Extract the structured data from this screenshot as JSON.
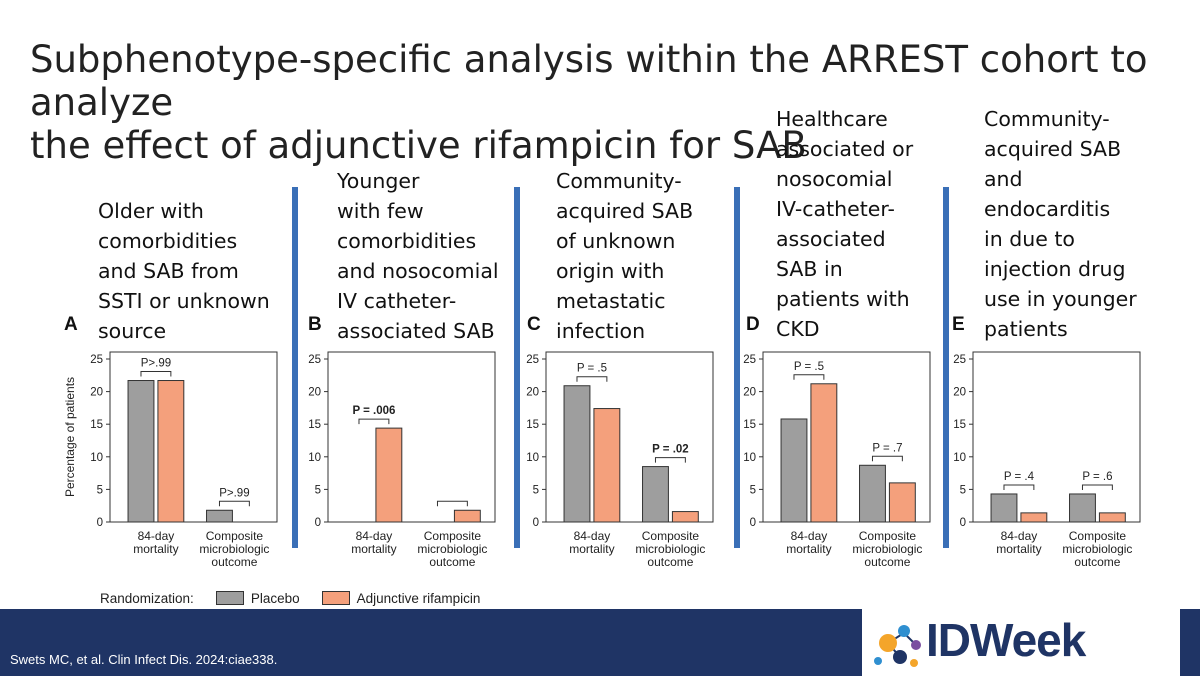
{
  "title_lines": [
    "Subphenotype-specific analysis within the ARREST cohort to analyze",
    "the effect of adjunctive rifampicin for SAB"
  ],
  "panels": [
    {
      "letter": "A",
      "desc": [
        "Older with",
        "comorbidities",
        "and SAB from",
        "SSTI or unknown",
        "source"
      ]
    },
    {
      "letter": "B",
      "desc": [
        "Younger",
        "with few",
        "comorbidities",
        "and nosocomial",
        "IV catheter-",
        "associated SAB"
      ]
    },
    {
      "letter": "C",
      "desc": [
        "Community-",
        "acquired SAB",
        "of unknown",
        "origin with",
        "metastatic",
        "infection"
      ]
    },
    {
      "letter": "D",
      "desc": [
        "Healthcare",
        "associated or",
        "nosocomial",
        "IV-catheter-",
        "associated",
        "SAB in",
        "patients with",
        "CKD"
      ]
    },
    {
      "letter": "E",
      "desc": [
        "Community-",
        "acquired SAB",
        "and",
        "endocarditis",
        "in due to",
        "injection drug",
        "use in younger",
        "patients"
      ]
    }
  ],
  "chart_data": [
    {
      "type": "bar",
      "panel": "A",
      "categories": [
        [
          "84-day",
          "mortality"
        ],
        [
          "Composite",
          "microbiologic",
          "outcome"
        ]
      ],
      "series": [
        {
          "name": "Placebo",
          "values": [
            21.7,
            1.8
          ]
        },
        {
          "name": "Adjunctive rifampicin",
          "values": [
            21.7,
            0
          ]
        }
      ],
      "ylabel": "Percentage of patients",
      "ylim": [
        0,
        25
      ],
      "yticks": [
        0,
        5,
        10,
        15,
        20,
        25
      ],
      "annotations": [
        {
          "text": "P>.99",
          "bold": false
        },
        {
          "text": "P>.99",
          "bold": false
        }
      ]
    },
    {
      "type": "bar",
      "panel": "B",
      "categories": [
        [
          "84-day",
          "mortality"
        ],
        [
          "Composite",
          "microbiologic",
          "outcome"
        ]
      ],
      "series": [
        {
          "name": "Placebo",
          "values": [
            0,
            0
          ]
        },
        {
          "name": "Adjunctive rifampicin",
          "values": [
            14.4,
            1.8
          ]
        }
      ],
      "ylabel": "",
      "ylim": [
        0,
        25
      ],
      "yticks": [
        0,
        5,
        10,
        15,
        20,
        25
      ],
      "annotations": [
        {
          "text": "P = .006",
          "bold": true
        },
        {
          "text": "",
          "bold": false
        }
      ]
    },
    {
      "type": "bar",
      "panel": "C",
      "categories": [
        [
          "84-day",
          "mortality"
        ],
        [
          "Composite",
          "microbiologic",
          "outcome"
        ]
      ],
      "series": [
        {
          "name": "Placebo",
          "values": [
            20.9,
            8.5
          ]
        },
        {
          "name": "Adjunctive rifampicin",
          "values": [
            17.4,
            1.6
          ]
        }
      ],
      "ylabel": "",
      "ylim": [
        0,
        25
      ],
      "yticks": [
        0,
        5,
        10,
        15,
        20,
        25
      ],
      "annotations": [
        {
          "text": "P = .5",
          "bold": false
        },
        {
          "text": "P = .02",
          "bold": true
        }
      ]
    },
    {
      "type": "bar",
      "panel": "D",
      "categories": [
        [
          "84-day",
          "mortality"
        ],
        [
          "Composite",
          "microbiologic",
          "outcome"
        ]
      ],
      "series": [
        {
          "name": "Placebo",
          "values": [
            15.8,
            8.7
          ]
        },
        {
          "name": "Adjunctive rifampicin",
          "values": [
            21.2,
            6.0
          ]
        }
      ],
      "ylabel": "",
      "ylim": [
        0,
        25
      ],
      "yticks": [
        0,
        5,
        10,
        15,
        20,
        25
      ],
      "annotations": [
        {
          "text": "P = .5",
          "bold": false
        },
        {
          "text": "P = .7",
          "bold": false
        }
      ]
    },
    {
      "type": "bar",
      "panel": "E",
      "categories": [
        [
          "84-day",
          "mortality"
        ],
        [
          "Composite",
          "microbiologic",
          "outcome"
        ]
      ],
      "series": [
        {
          "name": "Placebo",
          "values": [
            4.3,
            4.3
          ]
        },
        {
          "name": "Adjunctive rifampicin",
          "values": [
            1.4,
            1.4
          ]
        }
      ],
      "ylabel": "",
      "ylim": [
        0,
        25
      ],
      "yticks": [
        0,
        5,
        10,
        15,
        20,
        25
      ],
      "annotations": [
        {
          "text": "P = .4",
          "bold": false
        },
        {
          "text": "P = .6",
          "bold": false
        }
      ]
    }
  ],
  "legend": {
    "title": "Randomization:",
    "items": [
      {
        "name": "Placebo",
        "color": "#9e9e9e"
      },
      {
        "name": "Adjunctive rifampicin",
        "color": "#f4a07c"
      }
    ]
  },
  "colors": {
    "placebo": "#9e9e9e",
    "rifampicin": "#f4a07c",
    "separator": "#3a6fb7",
    "footer": "#1f3465"
  },
  "citation": "Swets MC, et al. Clin Infect Dis. 2024:ciae338.",
  "logo": {
    "text": "IDWeek"
  }
}
